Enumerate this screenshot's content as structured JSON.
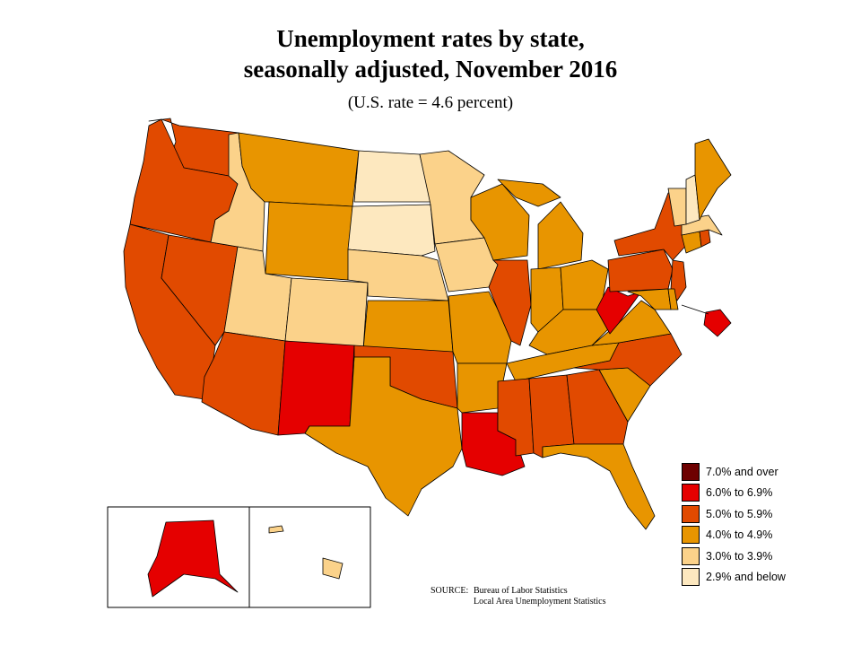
{
  "title_line1": "Unemployment rates by state,",
  "title_line2": "seasonally adjusted, November 2016",
  "subtitle": "(U.S. rate = 4.6 percent)",
  "colors": {
    "c7": "#6e0000",
    "c6": "#e50000",
    "c5": "#e14a00",
    "c4": "#e89500",
    "c3": "#fbd28a",
    "c2": "#fde8bf",
    "state_border": "#000000",
    "background": "#ffffff"
  },
  "legend": [
    {
      "label": "7.0% and over",
      "color": "#6e0000"
    },
    {
      "label": "6.0% to 6.9%",
      "color": "#e50000"
    },
    {
      "label": "5.0% to 5.9%",
      "color": "#e14a00"
    },
    {
      "label": "4.0% to 4.9%",
      "color": "#e89500"
    },
    {
      "label": "3.0% to 3.9%",
      "color": "#fbd28a"
    },
    {
      "label": "2.9% and below",
      "color": "#fde8bf"
    }
  ],
  "state_rate_class": {
    "WA": "5.0% to 5.9%",
    "OR": "5.0% to 5.9%",
    "CA": "5.0% to 5.9%",
    "NV": "5.0% to 5.9%",
    "ID": "3.0% to 3.9%",
    "MT": "4.0% to 4.9%",
    "WY": "4.0% to 4.9%",
    "UT": "3.0% to 3.9%",
    "CO": "3.0% to 3.9%",
    "AZ": "5.0% to 5.9%",
    "NM": "6.0% to 6.9%",
    "ND": "2.9% and below",
    "SD": "2.9% and below",
    "NE": "3.0% to 3.9%",
    "KS": "4.0% to 4.9%",
    "OK": "5.0% to 5.9%",
    "TX": "4.0% to 4.9%",
    "MN": "3.0% to 3.9%",
    "IA": "3.0% to 3.9%",
    "MO": "4.0% to 4.9%",
    "AR": "4.0% to 4.9%",
    "LA": "6.0% to 6.9%",
    "WI": "4.0% to 4.9%",
    "IL": "5.0% to 5.9%",
    "MI": "4.0% to 4.9%",
    "IN": "4.0% to 4.9%",
    "OH": "4.0% to 4.9%",
    "KY": "4.0% to 4.9%",
    "TN": "4.0% to 4.9%",
    "MS": "5.0% to 5.9%",
    "AL": "5.0% to 5.9%",
    "GA": "5.0% to 5.9%",
    "FL": "4.0% to 4.9%",
    "SC": "4.0% to 4.9%",
    "NC": "5.0% to 5.9%",
    "VA": "4.0% to 4.9%",
    "WV": "6.0% to 6.9%",
    "PA": "5.0% to 5.9%",
    "NY": "5.0% to 5.9%",
    "NJ": "5.0% to 5.9%",
    "DE": "4.0% to 4.9%",
    "MD": "4.0% to 4.9%",
    "DC": "6.0% to 6.9%",
    "CT": "4.0% to 4.9%",
    "RI": "5.0% to 5.9%",
    "MA": "3.0% to 3.9%",
    "VT": "3.0% to 3.9%",
    "NH": "2.9% and below",
    "ME": "4.0% to 4.9%",
    "AK": "6.0% to 6.9%",
    "HI": "3.0% to 3.9%"
  },
  "source_label": "SOURCE:",
  "source_line1": "Bureau of Labor Statistics",
  "source_line2": "Local Area Unemployment Statistics"
}
